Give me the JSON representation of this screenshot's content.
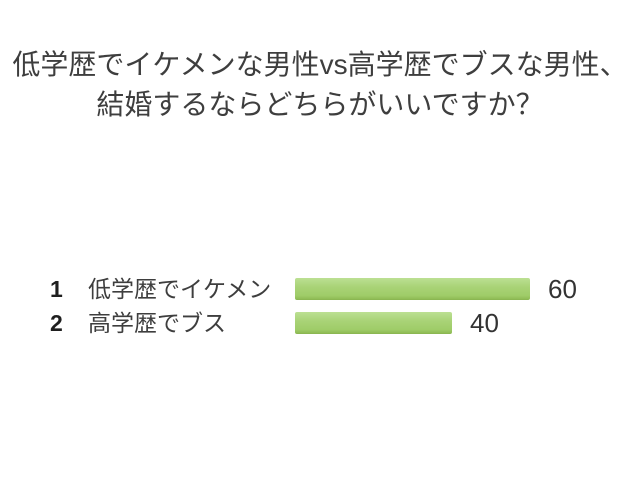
{
  "page": {
    "background_color": "#ffffff"
  },
  "poll": {
    "title_lines": [
      "低学歴でイケメンな男性vs高学歴でブスな男性、",
      "結婚するならどちらがいいですか？"
    ],
    "options": [
      {
        "rank": "1",
        "label": "低学歴でイケメン",
        "value": 60
      },
      {
        "rank": "2",
        "label": "高学歴でブス",
        "value": 40
      }
    ],
    "colors": {
      "bar_green": "#a2cf6b",
      "bar_green_light": "#bce093",
      "bar_green_dark": "#86b14e",
      "text_dark": "#3e3e3e"
    }
  },
  "chart_data": {
    "type": "bar",
    "orientation": "horizontal",
    "title": "低学歴でイケメンな男性vs高学歴でブスな男性、結婚するならどちらがいいですか？",
    "categories": [
      "低学歴でイケメン",
      "高学歴でブス"
    ],
    "values": [
      60,
      40
    ],
    "value_labels": [
      "60",
      "40"
    ],
    "xlabel": "",
    "ylabel": "",
    "xlim": [
      0,
      62
    ],
    "grid": false,
    "legend": false,
    "bar_color": "#a2cf6b",
    "data_labels_position": "right-of-bar"
  }
}
